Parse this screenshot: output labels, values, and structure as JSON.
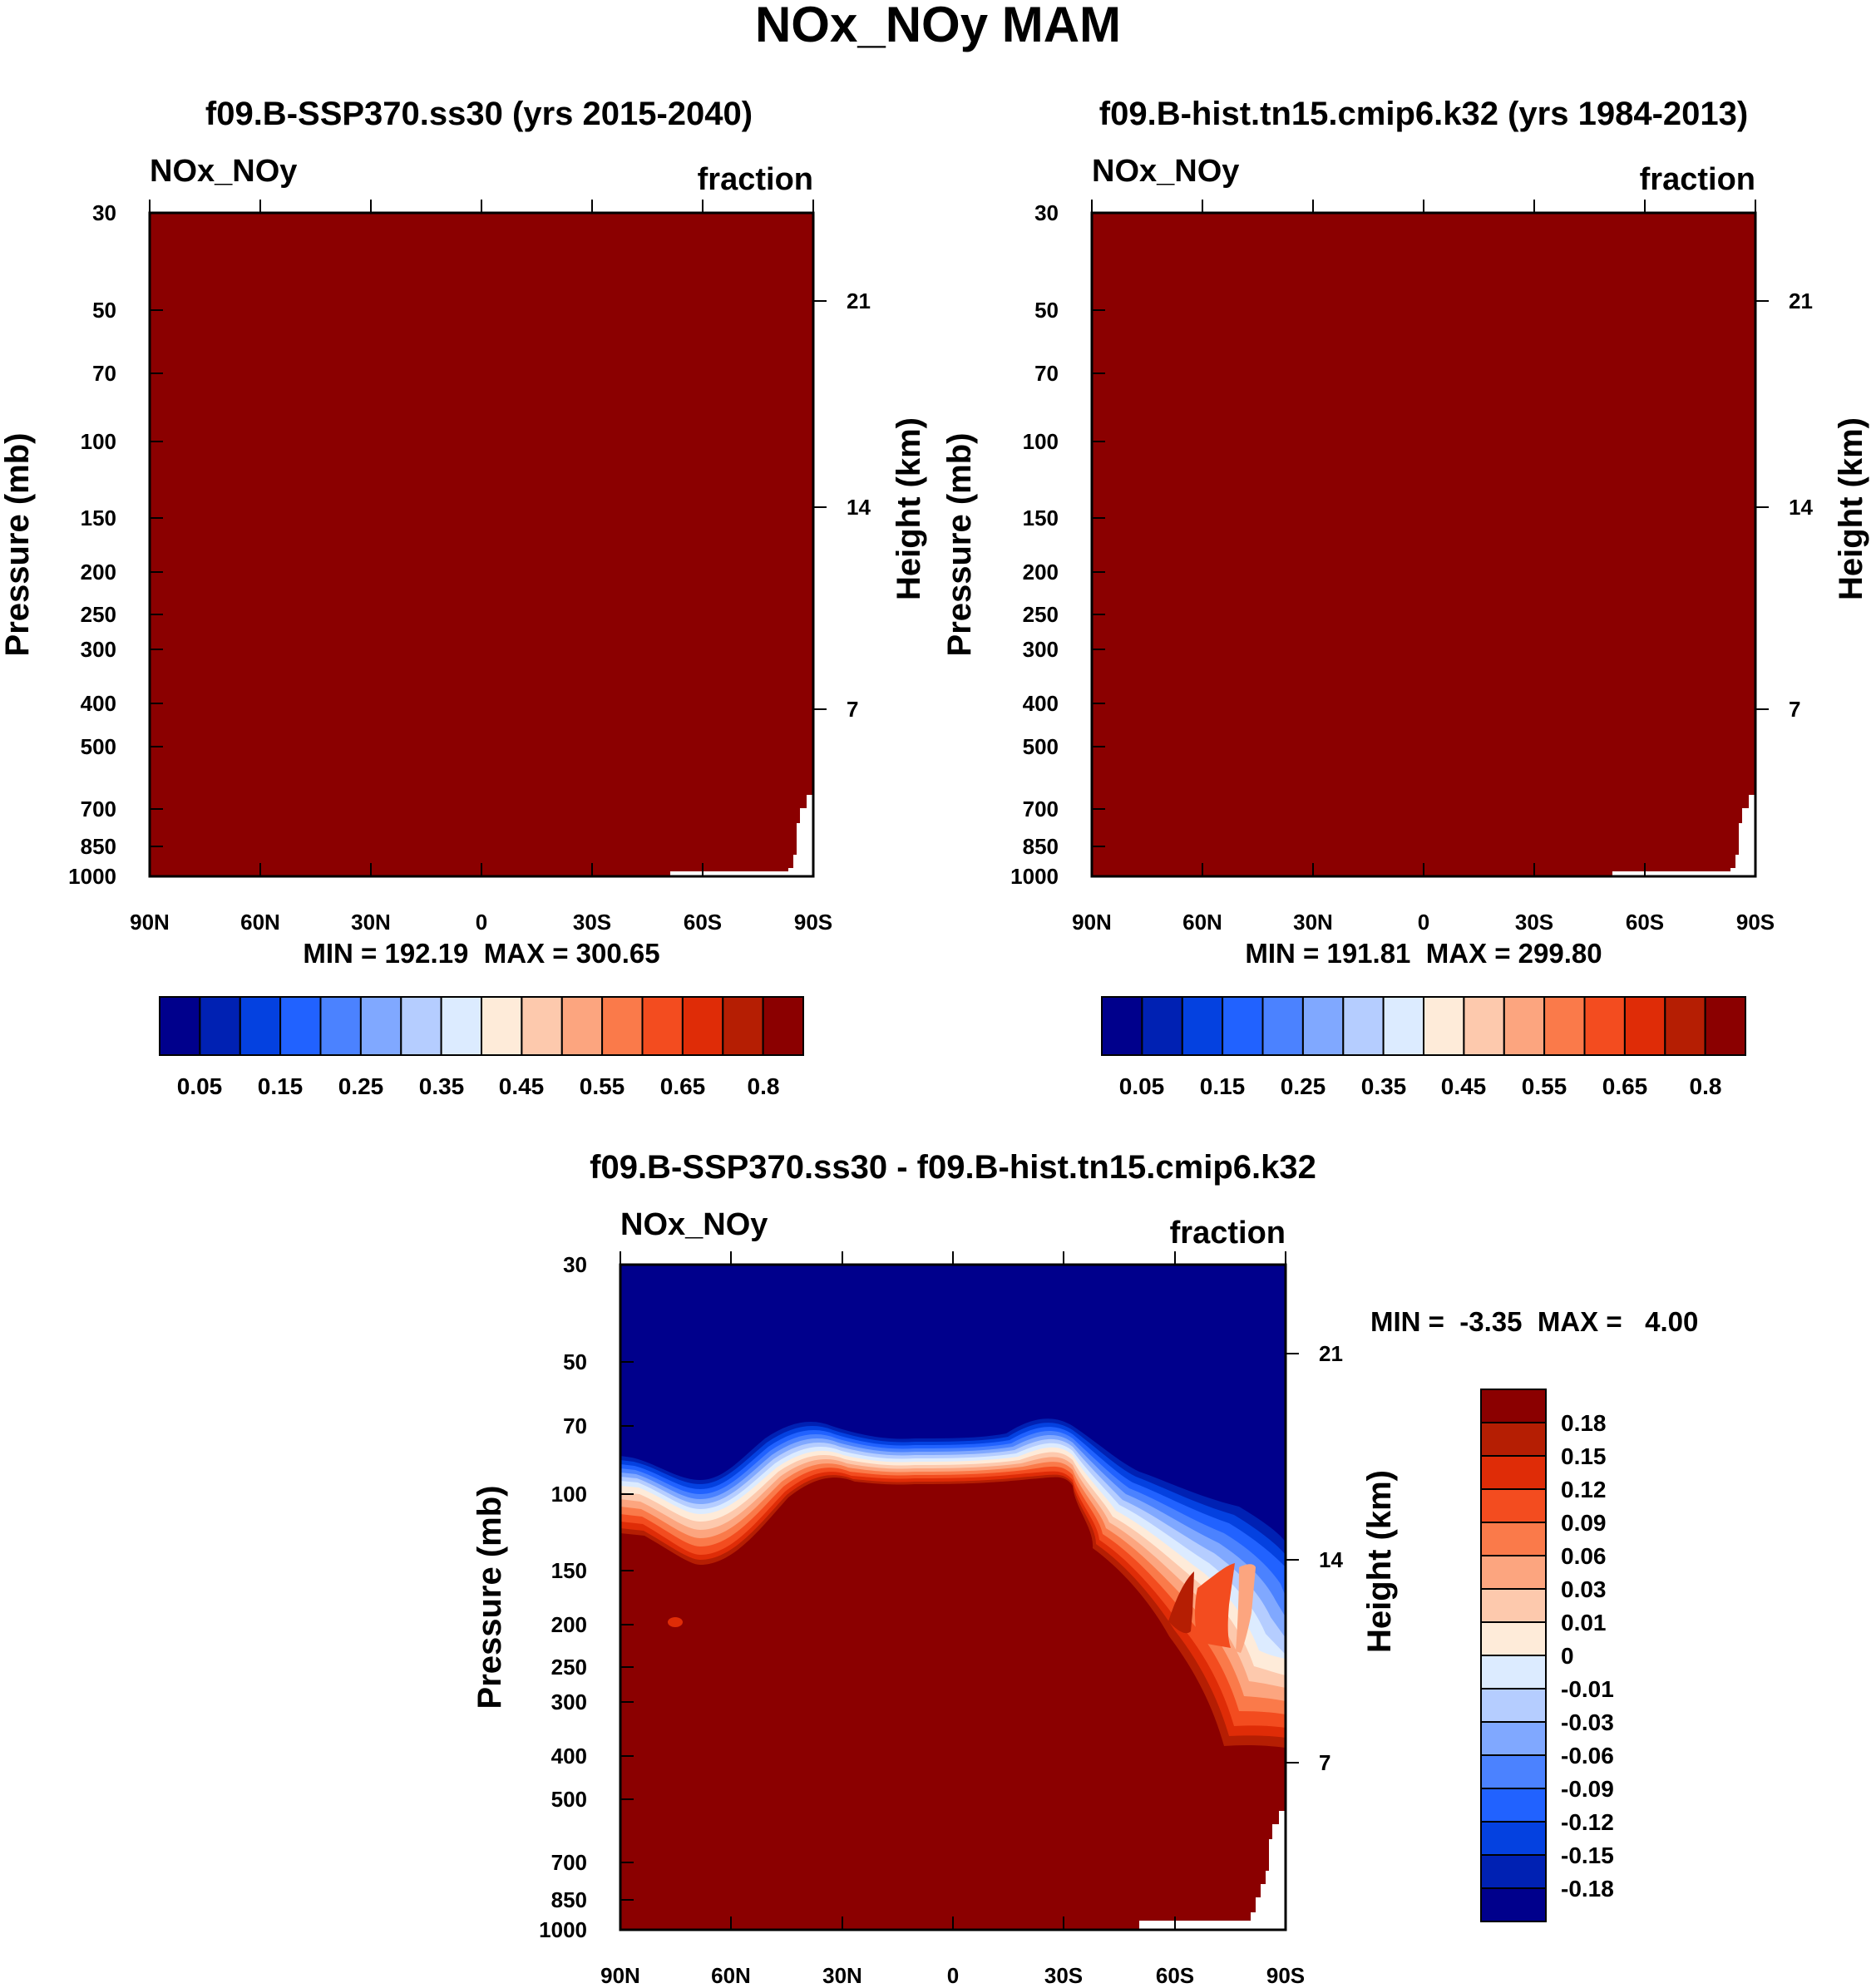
{
  "main_title": "NOx_NOy MAM",
  "chart_data": [
    {
      "type": "contour",
      "title": "f09.B-SSP370.ss30 (yrs 2015-2040)",
      "variable": "NOx_NOy",
      "units": "fraction",
      "ylabel": "Pressure (mb)",
      "ylabel_right": "Height (km)",
      "x_ticks": [
        "90N",
        "60N",
        "30N",
        "0",
        "30S",
        "60S",
        "90S"
      ],
      "p_ticks": [
        "30",
        "50",
        "70",
        "100",
        "150",
        "200",
        "250",
        "300",
        "400",
        "500",
        "700",
        "850",
        "1000"
      ],
      "height_ticks": [
        "21",
        "14",
        "7"
      ],
      "stats": "MIN = 192.19  MAX = 300.65",
      "colorbar_labels": [
        "0.05",
        "0.15",
        "0.25",
        "0.35",
        "0.45",
        "0.55",
        "0.65",
        "0.8"
      ],
      "field": "uniformly above 0.8 (dark red) except lowest levels near 90S"
    },
    {
      "type": "contour",
      "title": "f09.B-hist.tn15.cmip6.k32 (yrs 1984-2013)",
      "variable": "NOx_NOy",
      "units": "fraction",
      "ylabel": "Pressure (mb)",
      "ylabel_right": "Height (km)",
      "x_ticks": [
        "90N",
        "60N",
        "30N",
        "0",
        "30S",
        "60S",
        "90S"
      ],
      "p_ticks": [
        "30",
        "50",
        "70",
        "100",
        "150",
        "200",
        "250",
        "300",
        "400",
        "500",
        "700",
        "850",
        "1000"
      ],
      "height_ticks": [
        "21",
        "14",
        "7"
      ],
      "stats": "MIN = 191.81  MAX = 299.80",
      "colorbar_labels": [
        "0.05",
        "0.15",
        "0.25",
        "0.35",
        "0.45",
        "0.55",
        "0.65",
        "0.8"
      ],
      "field": "uniformly above 0.8 (dark red) except lowest levels near 90S"
    },
    {
      "type": "contour",
      "title": "f09.B-SSP370.ss30 - f09.B-hist.tn15.cmip6.k32",
      "variable": "NOx_NOy",
      "units": "fraction",
      "ylabel": "Pressure (mb)",
      "ylabel_right": "Height (km)",
      "x_ticks": [
        "90N",
        "60N",
        "30N",
        "0",
        "30S",
        "60S",
        "90S"
      ],
      "p_ticks": [
        "30",
        "50",
        "70",
        "100",
        "150",
        "200",
        "250",
        "300",
        "400",
        "500",
        "700",
        "850",
        "1000"
      ],
      "height_ticks": [
        "21",
        "14",
        "7"
      ],
      "stats": "MIN =  -3.35  MAX =   4.00",
      "colorbar_labels": [
        "0.18",
        "0.15",
        "0.12",
        "0.09",
        "0.06",
        "0.03",
        "0.01",
        "0",
        "-0.01",
        "-0.03",
        "-0.06",
        "-0.09",
        "-0.12",
        "-0.15",
        "-0.18"
      ],
      "field": "below -0.18 above ~100 mb, above 0.18 below ~100 mb, transition band near 100 mb"
    }
  ],
  "colors": {
    "bluewhitered": [
      "#00008c",
      "#0021b3",
      "#0441e0",
      "#2162ff",
      "#4b82ff",
      "#80a8ff",
      "#b5cdff",
      "#dcebff",
      "#feebd9",
      "#fdc9ad",
      "#fca57f",
      "#fa7a4a",
      "#f34c1f",
      "#df2c07",
      "#b51e03",
      "#8b0000"
    ]
  }
}
